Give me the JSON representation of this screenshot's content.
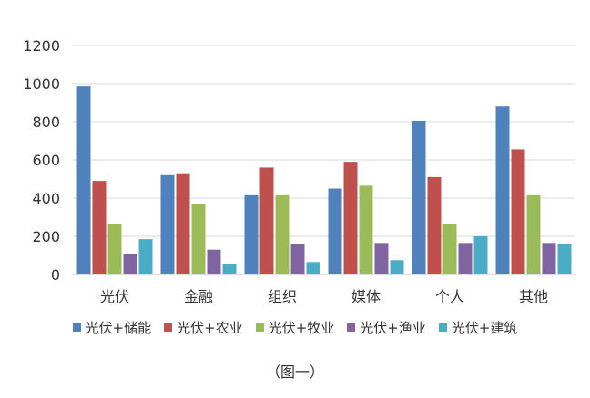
{
  "chart_data": {
    "type": "bar",
    "categories": [
      "光伏",
      "金融",
      "组织",
      "媒体",
      "个人",
      "其他"
    ],
    "series": [
      {
        "name": "光伏+储能",
        "color": "#4F81BD",
        "values": [
          985,
          520,
          415,
          450,
          805,
          880
        ]
      },
      {
        "name": "光伏+农业",
        "color": "#C0504D",
        "values": [
          490,
          530,
          560,
          590,
          510,
          655
        ]
      },
      {
        "name": "光伏+牧业",
        "color": "#9BBB59",
        "values": [
          265,
          370,
          415,
          465,
          265,
          415
        ]
      },
      {
        "name": "光伏+渔业",
        "color": "#8064A2",
        "values": [
          105,
          130,
          160,
          165,
          165,
          165
        ]
      },
      {
        "name": "光伏+建筑",
        "color": "#4BACC6",
        "values": [
          185,
          55,
          65,
          75,
          200,
          160
        ]
      }
    ],
    "yticks": [
      0,
      200,
      400,
      600,
      800,
      1000,
      1200
    ],
    "ylim": [
      0,
      1200
    ],
    "grid": true,
    "legend_position": "bottom"
  },
  "caption": "（图一）"
}
